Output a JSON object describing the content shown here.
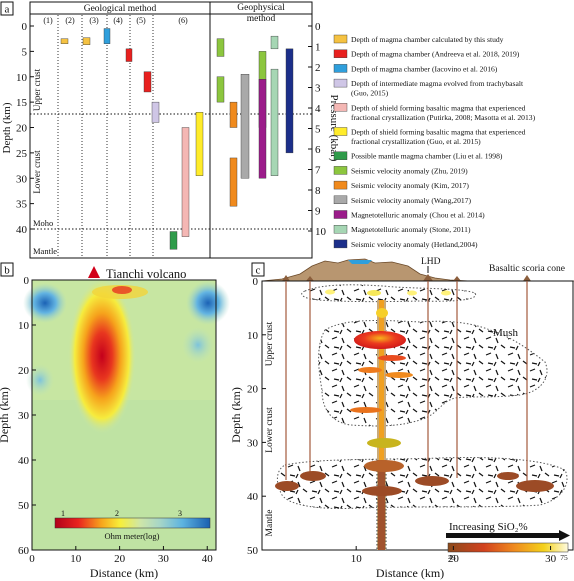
{
  "panel_a": {
    "label": "a",
    "header_geological": "Geological method",
    "header_geophysical": "Geophysical\nmethod",
    "columns": [
      "(1)",
      "(2)",
      "(3)",
      "(4)",
      "(5)",
      "(6)"
    ],
    "ylabel": "Depth (km)",
    "y2label": "Pressure (kbar)",
    "depth_ticks": [
      "0",
      "5",
      "10",
      "15",
      "20",
      "25",
      "30",
      "35",
      "40"
    ],
    "pressure_ticks": [
      "0",
      "1",
      "2",
      "3",
      "4",
      "5",
      "6",
      "7",
      "8",
      "9",
      "10"
    ],
    "zone_labels": [
      "Upper crust",
      "Lower crust",
      "Moho",
      "Mantle"
    ],
    "legend": [
      {
        "label": "Depth of magma chamber calculated by this study",
        "color": "#f5c242"
      },
      {
        "label": "Depth of magma chamber (Andreeva  et al. 2018, 2019)",
        "color": "#e8201f"
      },
      {
        "label": "Depth of magma chamber (Iacovino et al. 2016)",
        "color": "#2f9fdc"
      },
      {
        "label": "Depth of intermediate magma evolved from trachybasalt\n(Guo, 2015)",
        "color": "#cfc6e6"
      },
      {
        "label": "Depth of  shield forming basaltic magma that experienced\nfractional crystallization (Putirka, 2008; Masotta et al. 2013)",
        "color": "#f4b7b4"
      },
      {
        "label": "Depth of shield forming basaltic magma that experienced\nfractional crystallization (Guo, et al. 2015)",
        "color": "#ffec2a"
      },
      {
        "label": "Possible mantle magma chamber (Liu et al. 1998)",
        "color": "#2f9b4a"
      },
      {
        "label": "Seismic velocity anomaly (Zhu, 2019)",
        "color": "#8cc63e"
      },
      {
        "label": "Seismic velocity anomaly (Kim, 2017)",
        "color": "#f08a1d"
      },
      {
        "label": "Seismic velocity anomaly (Wang,2017)",
        "color": "#a9a9a9"
      },
      {
        "label": "Magnetotelluric anomaly (Chou et al. 2014)",
        "color": "#9b1c8a"
      },
      {
        "label": "Magnetotelluric anomaly (Stone, 2011)",
        "color": "#a6d6b4"
      },
      {
        "label": "Seismic velocity anomaly (Hetland,2004)",
        "color": "#1c2f8a"
      }
    ],
    "bars": [
      {
        "depth": [
          2.5,
          3.5
        ],
        "color": "#f5c242"
      },
      {
        "depth": [
          2.3,
          3.7
        ],
        "color": "#f5c242"
      },
      {
        "depth": [
          0.5,
          3.5
        ],
        "color": "#2f9fdc"
      },
      {
        "depth": [
          4.5,
          7.0
        ],
        "color": "#e8201f"
      },
      {
        "depth": [
          9.0,
          13.0
        ],
        "color": "#e8201f"
      },
      {
        "depth": [
          15.0,
          19.0
        ],
        "color": "#cfc6e6"
      },
      {
        "depth": [
          20.0,
          41.5
        ],
        "color": "#f4b7b4"
      },
      {
        "depth": [
          17.0,
          29.5
        ],
        "color": "#ffec2a"
      },
      {
        "depth": [
          40.5,
          44.0
        ],
        "color": "#2f9b4a"
      },
      {
        "depth": [
          2.5,
          6.0
        ],
        "color": "#8cc63e"
      },
      {
        "depth": [
          10.0,
          15.0
        ],
        "color": "#8cc63e"
      },
      {
        "depth": [
          15.0,
          20.0
        ],
        "color": "#f08a1d"
      },
      {
        "depth": [
          26.0,
          35.5
        ],
        "color": "#f08a1d"
      },
      {
        "depth": [
          9.5,
          30.0
        ],
        "color": "#a9a9a9"
      },
      {
        "depth": [
          5.0,
          20.0
        ],
        "color": "#8cc63e"
      },
      {
        "depth": [
          10.5,
          30.0
        ],
        "color": "#9b1c8a"
      },
      {
        "depth": [
          2.0,
          4.5
        ],
        "color": "#a6d6b4"
      },
      {
        "depth": [
          8.5,
          29.5
        ],
        "color": "#a6d6b4"
      },
      {
        "depth": [
          4.5,
          25.0
        ],
        "color": "#1c2f8a"
      }
    ]
  },
  "panel_b": {
    "label": "b",
    "title": "Tianchi volcano",
    "xlabel": "Distance (km)",
    "ylabel": "Depth (km)",
    "x_ticks": [
      "0",
      "10",
      "20",
      "30",
      "40"
    ],
    "y_ticks": [
      "0",
      "10",
      "20",
      "30",
      "40",
      "50",
      "60"
    ],
    "colorbar_ticks": [
      "1",
      "2",
      "3"
    ],
    "colorbar_label": "Ohm meter(log)"
  },
  "panel_c": {
    "label": "c",
    "label_lhd": "LHD",
    "label_scoria": "Basaltic scoria cone",
    "label_mush": "Mush",
    "zone_labels": [
      "Upper crust",
      "Lower crust",
      "Mantle"
    ],
    "xlabel": "Distance (km)",
    "ylabel": "Depth (km)",
    "x_ticks": [
      "10",
      "20",
      "30"
    ],
    "y_ticks": [
      "0",
      "10",
      "20",
      "30",
      "40",
      "50"
    ],
    "sio2_label": "Increasing SiO₂%",
    "sio2_min": "45",
    "sio2_max": "75"
  }
}
